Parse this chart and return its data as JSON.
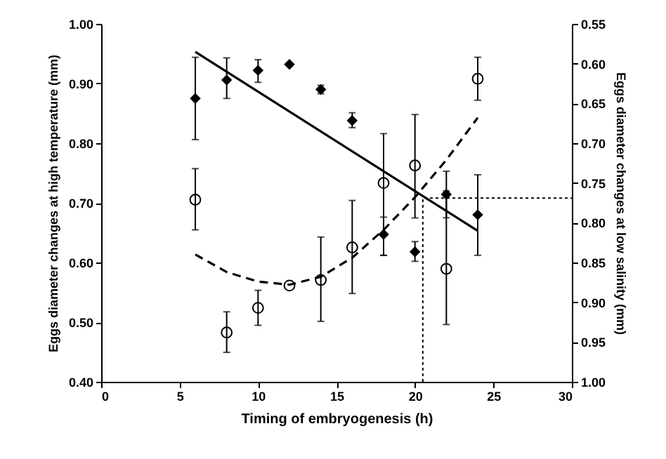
{
  "chart_data": {
    "type": "scatter",
    "xlabel": "Timing of embryogenesis (h)",
    "ylabel": "Eggs  diameter changes at high temperature (mm)",
    "y2label": "Eggs diameter changes at low salinity (mm)",
    "xlim": [
      0,
      30
    ],
    "xticks": [
      0,
      5,
      10,
      15,
      20,
      25,
      30
    ],
    "ylim": [
      0.4,
      1.0
    ],
    "yticks": [
      {
        "value": 0.4,
        "label": "0.40"
      },
      {
        "value": 0.5,
        "label": "0.50"
      },
      {
        "value": 0.6,
        "label": "0.60"
      },
      {
        "value": 0.7,
        "label": "0.70"
      },
      {
        "value": 0.8,
        "label": "0.80"
      },
      {
        "value": 0.9,
        "label": "0.90"
      },
      {
        "value": 1.0,
        "label": "1.00"
      }
    ],
    "y2lim": [
      1.0,
      0.55
    ],
    "y2ticks": [
      {
        "value": 0.55,
        "label": "0.55"
      },
      {
        "value": 0.6,
        "label": "0.60"
      },
      {
        "value": 0.65,
        "label": "0.65"
      },
      {
        "value": 0.7,
        "label": "0.70"
      },
      {
        "value": 0.75,
        "label": "0.75"
      },
      {
        "value": 0.8,
        "label": "0.80"
      },
      {
        "value": 0.85,
        "label": "0.85"
      },
      {
        "value": 0.9,
        "label": "0.90"
      },
      {
        "value": 0.95,
        "label": "0.95"
      },
      {
        "value": 1.0,
        "label": "1.00"
      }
    ],
    "grid": false,
    "series": [
      {
        "type": "scatter",
        "marker": "diamond",
        "color": "#000000",
        "x": [
          6,
          8,
          10,
          12,
          14,
          16,
          18,
          20,
          22,
          24
        ],
        "values": [
          0.875,
          0.906,
          0.922,
          0.932,
          0.89,
          0.838,
          0.647,
          0.618,
          0.714,
          0.68
        ],
        "errors": [
          [
            0.806,
            0.944
          ],
          [
            0.875,
            0.943
          ],
          [
            0.902,
            0.94
          ],
          null,
          [
            0.883,
            0.897
          ],
          [
            0.826,
            0.851
          ],
          [
            0.612,
            0.676
          ],
          [
            0.602,
            0.635
          ],
          [
            0.675,
            0.753
          ],
          [
            0.612,
            0.747
          ]
        ]
      },
      {
        "type": "scatter",
        "marker": "circle",
        "axis": "y2",
        "color": "#000000",
        "x": [
          6,
          8,
          10,
          12,
          14,
          16,
          18,
          20,
          22,
          24
        ],
        "values": [
          0.771,
          0.938,
          0.907,
          0.879,
          0.872,
          0.831,
          0.75,
          0.728,
          0.858,
          0.619
        ],
        "errors": [
          [
            0.732,
            0.809
          ],
          [
            0.912,
            0.963
          ],
          [
            0.885,
            0.929
          ],
          null,
          [
            0.818,
            0.924
          ],
          [
            0.772,
            0.889
          ],
          [
            0.688,
            0.841
          ],
          [
            0.664,
            0.794
          ],
          [
            0.76,
            0.928
          ],
          [
            0.592,
            0.646
          ]
        ]
      },
      {
        "type": "line",
        "line_style": "solid",
        "color": "#000000",
        "x": [
          6,
          24
        ],
        "values": [
          0.953,
          0.653
        ]
      },
      {
        "type": "line",
        "line_style": "dashed",
        "axis": "y2",
        "color": "#000000",
        "x": [
          6,
          8,
          10,
          12,
          14,
          16,
          18,
          20,
          22,
          24
        ],
        "values": [
          0.84,
          0.862,
          0.874,
          0.878,
          0.868,
          0.844,
          0.809,
          0.768,
          0.721,
          0.668
        ]
      },
      {
        "type": "line",
        "line_style": "dotted",
        "color": "#000000",
        "x": [
          20.5,
          20.5,
          30
        ],
        "values": [
          0.4,
          0.708,
          0.708
        ]
      }
    ]
  }
}
